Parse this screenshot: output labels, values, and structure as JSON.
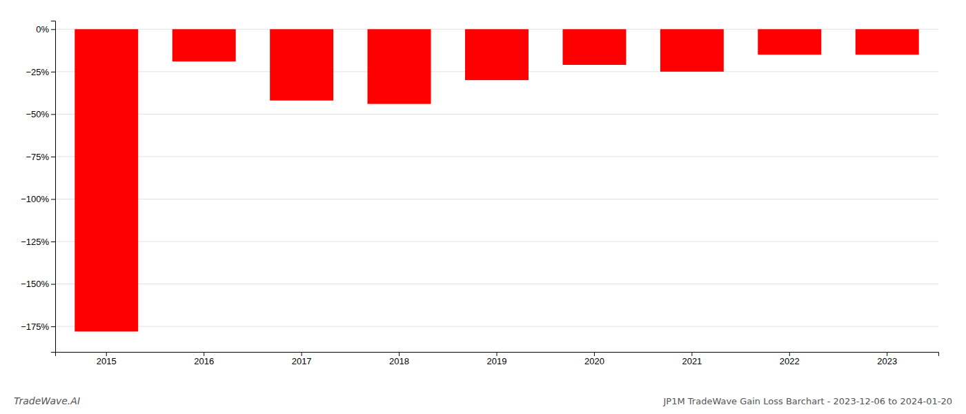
{
  "chart_data": {
    "type": "bar",
    "title": "JP1M TradeWave Gain Loss Barchart - 2023-12-06 to 2024-01-20",
    "annotations": [
      "TradeWave.AI"
    ],
    "categories": [
      "2015",
      "2016",
      "2017",
      "2018",
      "2019",
      "2020",
      "2021",
      "2022",
      "2023"
    ],
    "values": [
      -178.0,
      -19.0,
      -42.0,
      -44.0,
      -30.0,
      -21.0,
      -25.0,
      -15.0,
      -15.0
    ],
    "color": "#ff0000",
    "ylim": [
      -190,
      5
    ],
    "yticks": [
      {
        "value": 0,
        "label": "0%"
      },
      {
        "value": -25,
        "label": "−25%"
      },
      {
        "value": -50,
        "label": "−50%"
      },
      {
        "value": -75,
        "label": "−75%"
      },
      {
        "value": -100,
        "label": "−100%"
      },
      {
        "value": -125,
        "label": "−125%"
      },
      {
        "value": -150,
        "label": "−150%"
      },
      {
        "value": -175,
        "label": "−175%"
      }
    ],
    "grid": true
  }
}
